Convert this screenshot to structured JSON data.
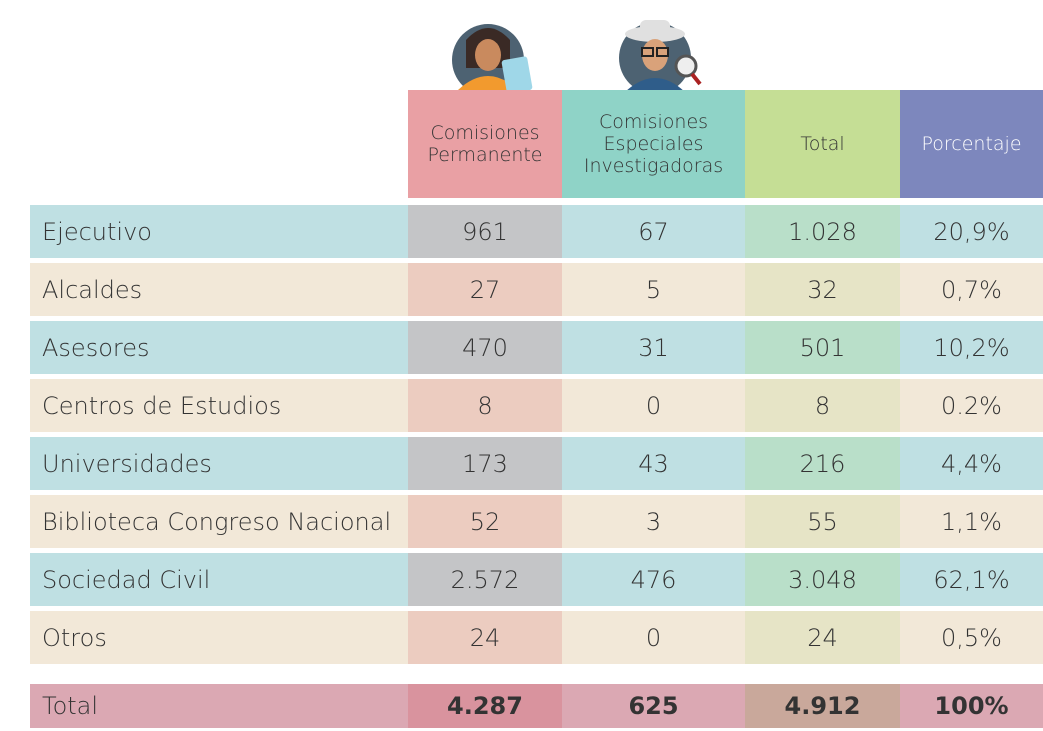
{
  "table": {
    "columns": [
      "Comisiones Permanente",
      "Comisiones Especiales Investigadoras",
      "Total",
      "Porcentaje"
    ],
    "rows": [
      {
        "label": "Ejecutivo",
        "cells": [
          "961",
          "67",
          "1.028",
          "20,9%"
        ]
      },
      {
        "label": "Alcaldes",
        "cells": [
          "27",
          "5",
          "32",
          "0,7%"
        ]
      },
      {
        "label": "Asesores",
        "cells": [
          "470",
          "31",
          "501",
          "10,2%"
        ]
      },
      {
        "label": "Centros de Estudios",
        "cells": [
          "8",
          "0",
          "8",
          "0.2%"
        ]
      },
      {
        "label": "Universidades",
        "cells": [
          "173",
          "43",
          "216",
          "4,4%"
        ]
      },
      {
        "label": "Biblioteca Congreso Nacional",
        "cells": [
          "52",
          "3",
          "55",
          "1,1%"
        ]
      },
      {
        "label": "Sociedad Civil",
        "cells": [
          "2.572",
          "476",
          "3.048",
          "62,1%"
        ]
      },
      {
        "label": "Otros",
        "cells": [
          "24",
          "0",
          "24",
          "0,5%"
        ]
      }
    ],
    "total": {
      "label": "Total",
      "cells": [
        "4.287",
        "625",
        "4.912",
        "100%"
      ]
    }
  }
}
